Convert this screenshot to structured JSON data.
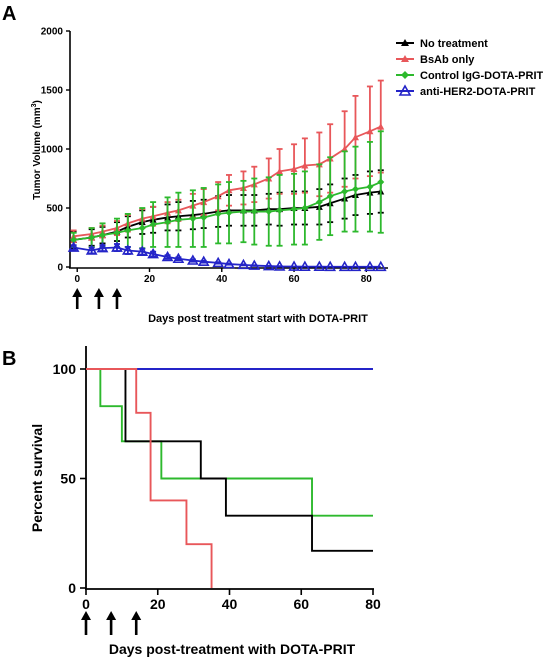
{
  "panels": {
    "a": "A",
    "b": "B"
  },
  "chart_data": [
    {
      "type": "line",
      "xlabel": "Days post treatment start with DOTA-PRIT",
      "ylabel_main": "Tumor Volume (mm",
      "ylabel_sup": "3",
      "ylabel_end": ")",
      "xlim": [
        -2,
        86
      ],
      "ylim": [
        0,
        2000
      ],
      "xticks": [
        0,
        20,
        40,
        60,
        80
      ],
      "yticks": [
        0,
        500,
        1000,
        1500,
        2000
      ],
      "arrows_at_days": [
        0,
        6,
        11
      ],
      "series": [
        {
          "name": "No treatment",
          "color": "#000000",
          "marker": "triangle-filled",
          "x": [
            -1,
            4,
            7,
            11,
            14,
            18,
            21,
            25,
            28,
            32,
            35,
            39,
            42,
            46,
            49,
            53,
            56,
            60,
            63,
            67,
            70,
            74,
            77,
            81,
            84
          ],
          "y": [
            230,
            250,
            270,
            300,
            340,
            380,
            400,
            420,
            430,
            440,
            450,
            470,
            480,
            480,
            480,
            490,
            490,
            500,
            500,
            510,
            540,
            580,
            610,
            630,
            640
          ],
          "err": [
            70,
            70,
            70,
            80,
            90,
            100,
            110,
            110,
            120,
            120,
            120,
            130,
            130,
            130,
            130,
            130,
            140,
            140,
            140,
            150,
            160,
            170,
            170,
            180,
            180
          ]
        },
        {
          "name": "BsAb only",
          "color": "#e8575a",
          "marker": "triangle-filled",
          "x": [
            -1,
            4,
            7,
            11,
            14,
            18,
            21,
            25,
            28,
            32,
            35,
            39,
            42,
            46,
            49,
            53,
            56,
            60,
            63,
            67,
            70,
            74,
            77,
            81,
            84
          ],
          "y": [
            260,
            280,
            300,
            330,
            370,
            410,
            430,
            460,
            480,
            520,
            550,
            600,
            650,
            670,
            700,
            750,
            810,
            830,
            860,
            870,
            920,
            1000,
            1100,
            1150,
            1190
          ],
          "err": [
            50,
            50,
            50,
            60,
            70,
            80,
            80,
            90,
            90,
            100,
            110,
            120,
            130,
            140,
            150,
            170,
            190,
            210,
            230,
            270,
            290,
            320,
            350,
            380,
            390
          ]
        },
        {
          "name": "Control IgG-DOTA-PRIT",
          "color": "#2db92d",
          "marker": "diamond-filled",
          "x": [
            -1,
            4,
            7,
            11,
            14,
            18,
            21,
            25,
            28,
            32,
            35,
            39,
            42,
            46,
            49,
            53,
            56,
            60,
            63,
            67,
            70,
            74,
            77,
            81,
            84
          ],
          "y": [
            230,
            250,
            270,
            290,
            310,
            330,
            360,
            380,
            400,
            410,
            420,
            450,
            460,
            470,
            470,
            470,
            480,
            490,
            500,
            550,
            600,
            640,
            660,
            680,
            720
          ],
          "err": [
            60,
            80,
            100,
            120,
            140,
            170,
            190,
            210,
            230,
            240,
            250,
            250,
            260,
            260,
            280,
            290,
            300,
            300,
            310,
            320,
            330,
            340,
            360,
            380,
            430
          ]
        },
        {
          "name": "anti-HER2-DOTA-PRIT",
          "color": "#2424c8",
          "marker": "triangle-open",
          "x": [
            -1,
            4,
            7,
            11,
            14,
            18,
            21,
            25,
            28,
            32,
            35,
            39,
            42,
            46,
            49,
            53,
            56,
            60,
            63,
            67,
            70,
            74,
            77,
            81,
            84
          ],
          "y": [
            165,
            140,
            160,
            165,
            140,
            130,
            110,
            85,
            70,
            55,
            45,
            35,
            25,
            18,
            12,
            8,
            5,
            4,
            3,
            3,
            2,
            2,
            2,
            2,
            2
          ],
          "err": [
            20,
            25,
            25,
            30,
            30,
            25,
            20,
            15,
            12,
            10,
            8,
            6,
            5,
            4,
            3,
            2,
            2,
            1,
            1,
            1,
            1,
            1,
            1,
            1,
            1
          ]
        }
      ]
    },
    {
      "type": "line",
      "subtype": "step",
      "xlabel": "Days post-treatment with DOTA-PRIT",
      "ylabel": "Percent survival",
      "xlim": [
        0,
        80
      ],
      "ylim": [
        0,
        100
      ],
      "xticks": [
        0,
        20,
        40,
        60,
        80
      ],
      "yticks": [
        0,
        50,
        100
      ],
      "arrows_at_days": [
        0,
        7,
        14
      ],
      "series": [
        {
          "color": "#2424c8",
          "x": [
            0,
            80
          ],
          "y": [
            100,
            100
          ]
        },
        {
          "color": "#2db92d",
          "x": [
            0,
            4,
            10,
            21,
            32,
            63,
            80
          ],
          "y": [
            100,
            83,
            67,
            50,
            50,
            33,
            33
          ]
        },
        {
          "color": "#000000",
          "x": [
            0,
            11,
            32,
            39,
            63,
            80
          ],
          "y": [
            100,
            67,
            50,
            33,
            17,
            17
          ]
        },
        {
          "color": "#e8575a",
          "x": [
            0,
            14,
            18,
            28,
            35
          ],
          "y": [
            100,
            80,
            40,
            20,
            0
          ]
        }
      ]
    }
  ]
}
